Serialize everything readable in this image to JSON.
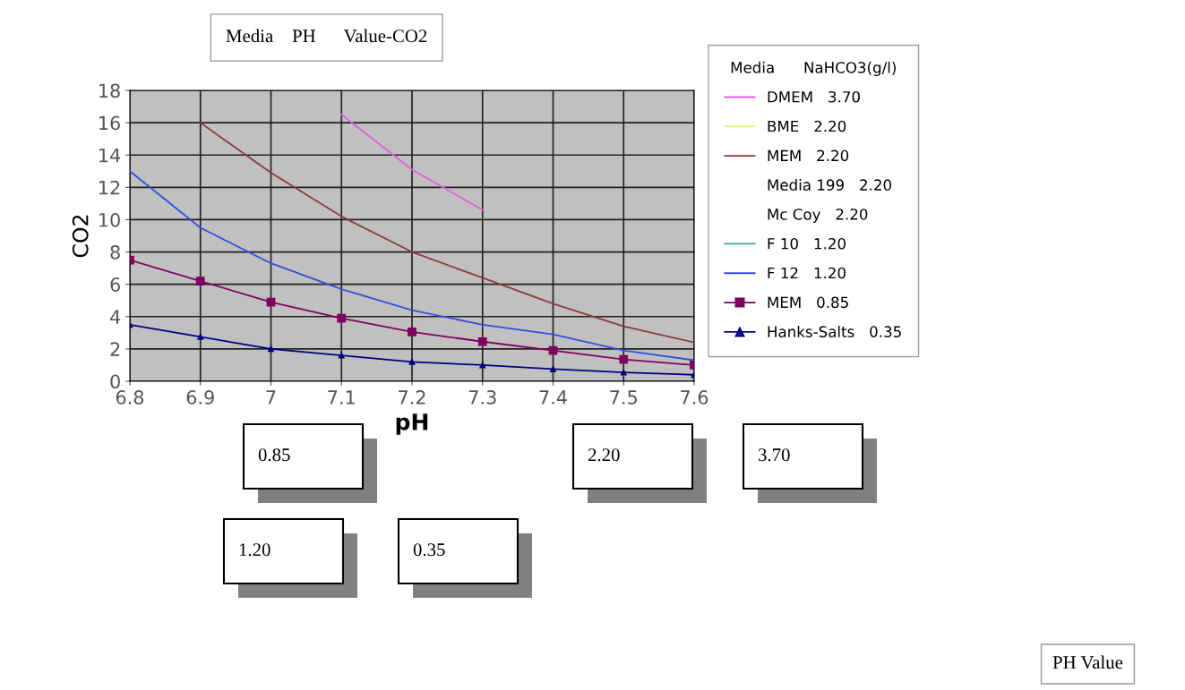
{
  "chart_data": {
    "type": "line",
    "title": "Media    PH      Value-CO2",
    "xlabel": "pH",
    "ylabel": "CO2",
    "legend_title": "Media      NaHCO3(g/l)",
    "x": [
      6.8,
      6.9,
      7.0,
      7.1,
      7.2,
      7.3,
      7.4,
      7.5,
      7.6
    ],
    "series": [
      {
        "name": "DMEM   3.70",
        "color": "#e060e0",
        "values": [
          null,
          null,
          null,
          16.5,
          13.1,
          10.6,
          null,
          null,
          null
        ]
      },
      {
        "name": "BME   2.20",
        "color": "#f0f080",
        "values": [
          null,
          null,
          null,
          null,
          null,
          null,
          null,
          null,
          null
        ]
      },
      {
        "name": "MEM   2.20",
        "color": "#8b3a3a",
        "values": [
          null,
          16.0,
          12.9,
          10.2,
          8.0,
          6.4,
          4.8,
          3.4,
          2.4
        ]
      },
      {
        "name": "Media 199   2.20",
        "values": [
          null,
          null,
          null,
          null,
          null,
          null,
          null,
          null,
          null
        ]
      },
      {
        "name": "Mc Coy   2.20",
        "values": [
          null,
          null,
          null,
          null,
          null,
          null,
          null,
          null,
          null
        ]
      },
      {
        "name": "F 10   1.20",
        "color": "#40a0a0",
        "values": [
          null,
          null,
          null,
          null,
          null,
          null,
          null,
          null,
          null
        ]
      },
      {
        "name": "F 12   1.20",
        "color": "#3050e0",
        "values": [
          13.0,
          9.5,
          7.3,
          5.7,
          4.4,
          3.5,
          2.9,
          1.9,
          1.3
        ]
      },
      {
        "name": "MEM   0.85",
        "color": "#800060",
        "marker": "square",
        "values": [
          7.5,
          6.2,
          4.9,
          3.9,
          3.05,
          2.45,
          1.9,
          1.35,
          1.0
        ]
      },
      {
        "name": "Hanks-Salts   0.35",
        "color": "#000080",
        "marker": "triangle",
        "values": [
          3.5,
          2.75,
          2.0,
          1.6,
          1.2,
          1.0,
          0.75,
          0.55,
          0.4
        ]
      }
    ],
    "xlim": [
      6.8,
      7.6
    ],
    "xticks": [
      6.8,
      6.9,
      {
        "value": 7.0,
        "label": "7"
      },
      7.1,
      7.2,
      7.3,
      7.4,
      7.5,
      7.6
    ],
    "ylim": [
      0,
      18
    ],
    "yticks": [
      0,
      2,
      4,
      6,
      8,
      10,
      12,
      14,
      16,
      18
    ],
    "grid": true,
    "legend": "right",
    "annotations": [
      "2.20",
      "3.70",
      "1.20",
      "0.85",
      "0.35",
      "PH Value"
    ]
  }
}
